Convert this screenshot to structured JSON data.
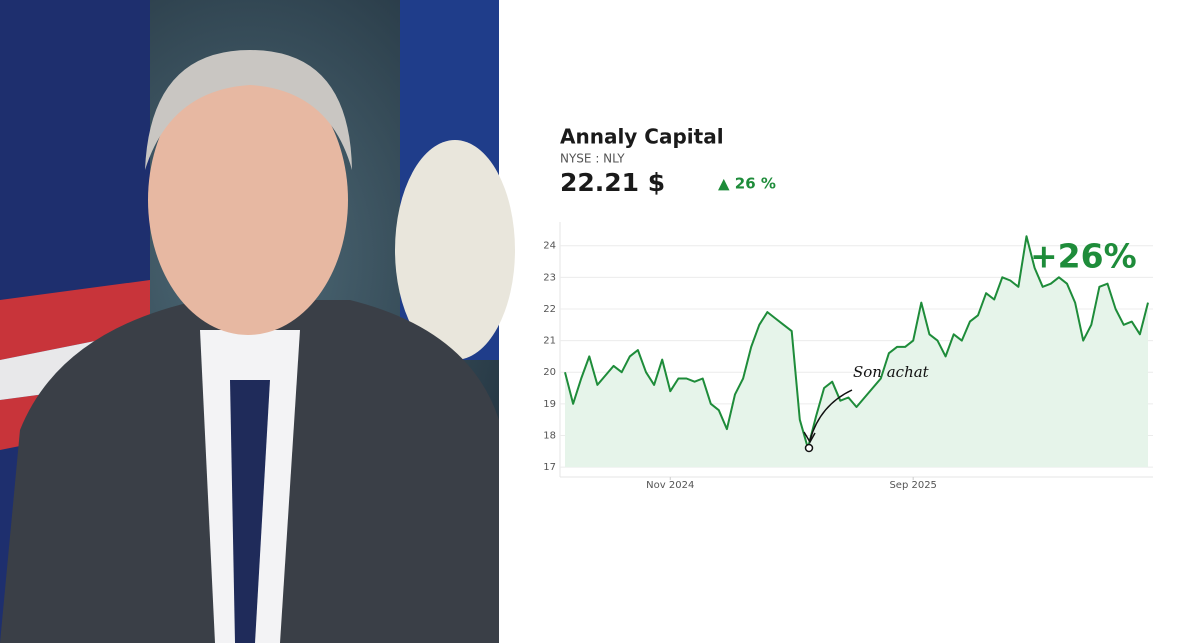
{
  "chart_data": {
    "type": "line",
    "title": "Annaly Capital",
    "subtitle": "NYSE : NLY",
    "price": "22.21 $",
    "change": "▲ 26 %",
    "annotations": [
      "Son achat",
      "+26%"
    ],
    "color": "#1e8c3a",
    "fill": "#e6f4ea",
    "grid": true,
    "xlim": [
      0,
      72
    ],
    "xticks": [
      {
        "value": 13,
        "label": "Nov 2024"
      },
      {
        "value": 43,
        "label": "Sep 2025"
      }
    ],
    "ylim": [
      16.75,
      24.75
    ],
    "yticks": [
      17,
      18,
      19,
      20,
      21,
      22,
      23,
      24
    ],
    "values": [
      20.0,
      19.0,
      19.8,
      20.5,
      19.6,
      19.9,
      20.2,
      20.0,
      20.5,
      20.7,
      20.0,
      19.6,
      20.4,
      19.4,
      19.8,
      19.8,
      19.7,
      19.8,
      19.0,
      18.8,
      18.2,
      19.3,
      19.8,
      20.8,
      21.5,
      21.9,
      21.7,
      21.5,
      21.3,
      18.5,
      17.6,
      18.6,
      19.5,
      19.7,
      19.1,
      19.2,
      18.9,
      19.2,
      19.5,
      19.8,
      20.6,
      20.8,
      20.8,
      21.0,
      22.2,
      21.2,
      21.0,
      20.5,
      21.2,
      21.0,
      21.6,
      21.8,
      22.5,
      22.3,
      23.0,
      22.9,
      22.7,
      24.3,
      23.3,
      22.7,
      22.8,
      23.0,
      22.8,
      22.2,
      21.0,
      21.5,
      22.7,
      22.8,
      22.0,
      21.5,
      21.6,
      21.2,
      22.2
    ]
  }
}
